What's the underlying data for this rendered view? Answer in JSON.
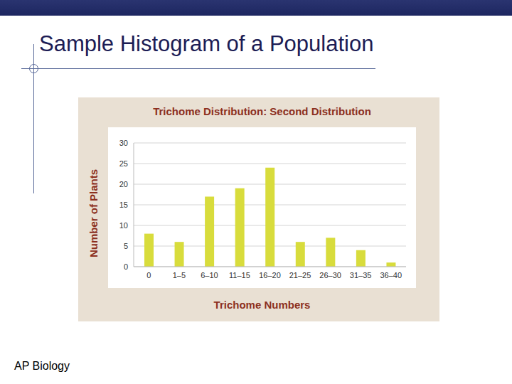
{
  "slide": {
    "title": "Sample Histogram of a Population",
    "footer": "AP Biology"
  },
  "chart_data": {
    "type": "bar",
    "title": "Trichome Distribution: Second Distribution",
    "x_label": "Trichome Numbers",
    "y_label": "Number of Plants",
    "categories": [
      "0",
      "1–5",
      "6–10",
      "11–15",
      "16–20",
      "21–25",
      "26–30",
      "31–35",
      "36–40"
    ],
    "values": [
      8,
      6,
      17,
      19,
      24,
      6,
      7,
      4,
      1
    ],
    "color": "#d8dc3c",
    "ylim": [
      0,
      30
    ],
    "yticks": [
      0,
      5,
      10,
      15,
      20,
      25,
      30
    ],
    "grid": true
  }
}
